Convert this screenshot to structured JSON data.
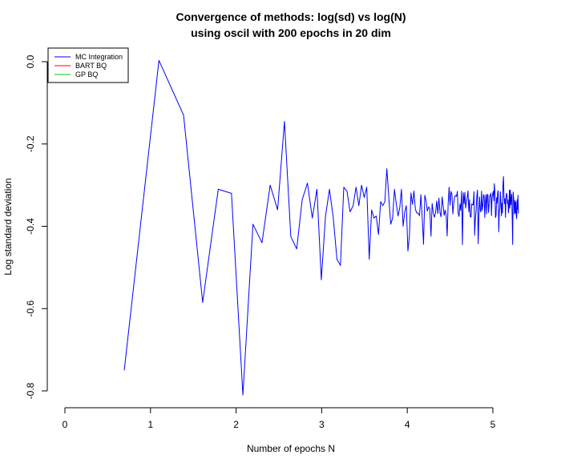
{
  "chart_data": {
    "type": "line",
    "title_line1": "Convergence of methods: log(sd) vs log(N)",
    "title_line2": "using oscil with 200 epochs in 20 dim",
    "xlabel": "Number of epochs N",
    "ylabel": "Log standard deviation",
    "xlim": [
      0,
      5.3
    ],
    "ylim": [
      -0.82,
      0.02
    ],
    "x_ticks": [
      0,
      1,
      2,
      3,
      4,
      5
    ],
    "y_ticks": [
      0.0,
      -0.2,
      -0.4,
      -0.6,
      -0.8
    ],
    "x_tick_labels": [
      "0",
      "1",
      "2",
      "3",
      "4",
      "5"
    ],
    "y_tick_labels": [
      "0.0",
      "-0.2",
      "-0.4",
      "-0.6",
      "-0.8"
    ],
    "legend": [
      {
        "name": "MC Integration",
        "color": "#0000ff"
      },
      {
        "name": "BART BQ",
        "color": "#ff0000"
      },
      {
        "name": "GP BQ",
        "color": "#00cc00"
      }
    ],
    "legend_position": "top-left",
    "series": [
      {
        "name": "MC Integration",
        "color": "#0000ff",
        "x_start": 2,
        "x_end": 200,
        "x_transform": "log",
        "y_head": [
          -0.75,
          0.003,
          -0.13,
          -0.585,
          -0.31,
          -0.32,
          -0.81,
          -0.395,
          -0.44,
          -0.3,
          -0.36,
          -0.145,
          -0.425,
          -0.455,
          -0.335,
          -0.295,
          -0.38,
          -0.31,
          -0.53,
          -0.375,
          -0.31,
          -0.38,
          -0.48,
          -0.495,
          -0.305,
          -0.315,
          -0.365,
          -0.35,
          -0.305,
          -0.35,
          -0.3,
          -0.33,
          -0.305,
          -0.48,
          -0.36,
          -0.38,
          -0.375,
          -0.42,
          -0.34,
          -0.35,
          -0.34,
          -0.26,
          -0.33,
          -0.395,
          -0.38,
          -0.31,
          -0.345,
          -0.375,
          -0.355,
          -0.31,
          -0.4,
          -0.365,
          -0.35,
          -0.46
        ],
        "tail_center": -0.345,
        "tail_amplitude": 0.035
      }
    ]
  }
}
